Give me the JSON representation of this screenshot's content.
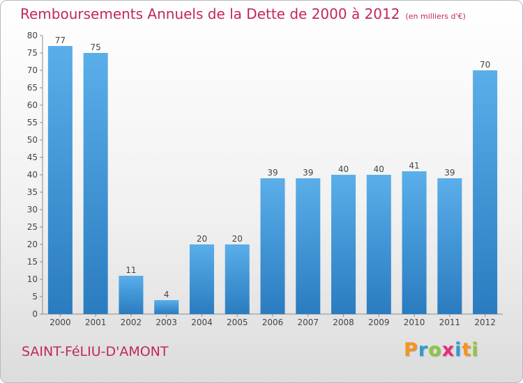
{
  "title": "Remboursements Annuels de la Dette de 2000 à 2012",
  "unit": "(en milliers d'€)",
  "commune": "SAINT-FéLIU-D'AMONT",
  "logo": {
    "letters": [
      {
        "ch": "P",
        "color": "#f7941d"
      },
      {
        "ch": "r",
        "color": "#2e9ad6"
      },
      {
        "ch": "o",
        "color": "#8cc63f"
      },
      {
        "ch": "x",
        "color": "#ec2a7b"
      },
      {
        "ch": "i",
        "color": "#2e9ad6"
      },
      {
        "ch": "t",
        "color": "#f7941d"
      },
      {
        "ch": "i",
        "color": "#8cc63f"
      }
    ]
  },
  "colors": {
    "bar_light": "#5aaee9",
    "bar_dark": "#2a7cc0",
    "title": "#c0275d"
  },
  "chart_data": {
    "type": "bar",
    "categories": [
      "2000",
      "2001",
      "2002",
      "2003",
      "2004",
      "2005",
      "2006",
      "2007",
      "2008",
      "2009",
      "2010",
      "2011",
      "2012"
    ],
    "values": [
      77,
      75,
      11,
      4,
      20,
      20,
      39,
      39,
      40,
      40,
      41,
      39,
      70
    ],
    "ylim": [
      0,
      80
    ],
    "yticks": [
      0,
      5,
      10,
      15,
      20,
      25,
      30,
      35,
      40,
      45,
      50,
      55,
      60,
      65,
      70,
      75,
      80
    ],
    "grid": false
  }
}
